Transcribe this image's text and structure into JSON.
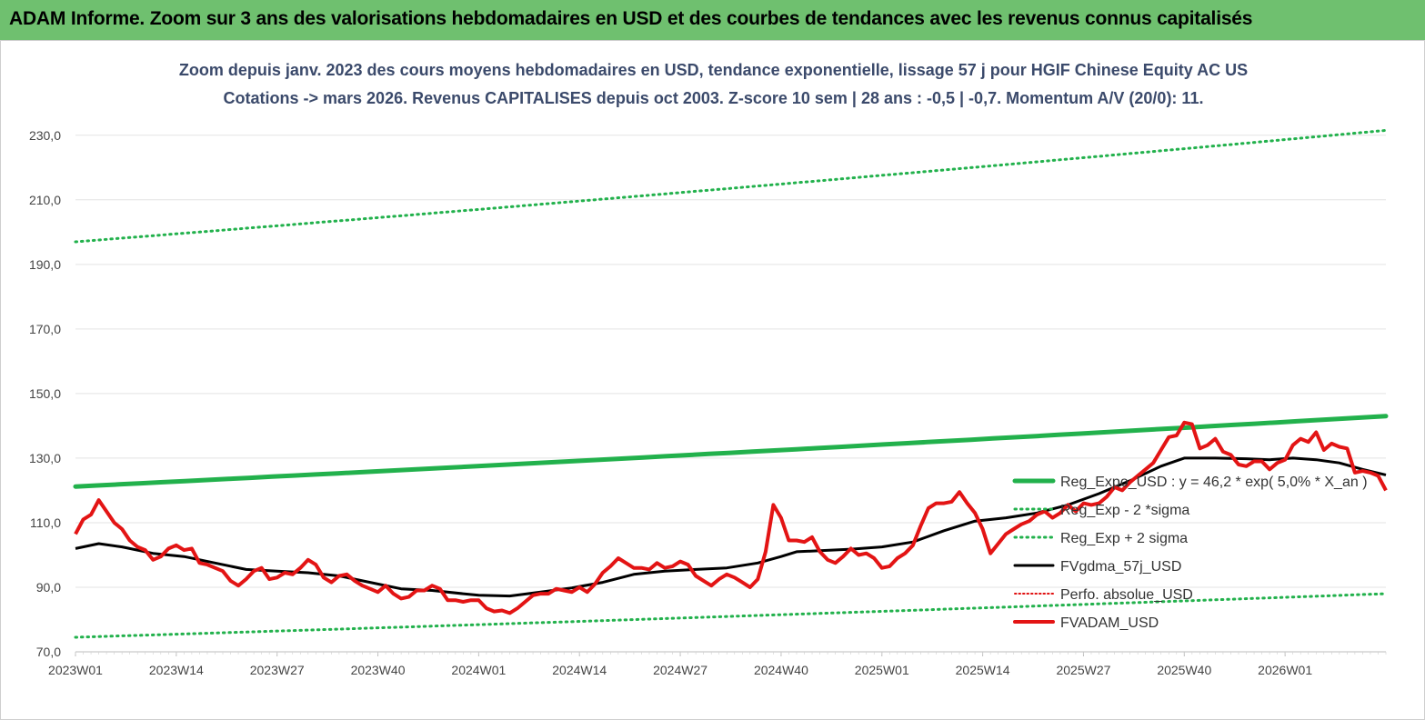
{
  "banner": {
    "title": "ADAM Informe. Zoom sur 3 ans des valorisations hebdomadaires en USD et des courbes de tendances avec les revenus connus capitalisés"
  },
  "colors": {
    "banner_bg": "#6fc06f",
    "reg_exp": "#22b14c",
    "sigma": "#22b14c",
    "gdma": "#000000",
    "perfo": "#e01010",
    "fvadam": "#e31414",
    "subtitle": "#3b4a6b"
  },
  "chart_data": {
    "type": "line",
    "title": "Zoom depuis janv. 2023 des cours moyens hebdomadaires en USD, tendance exponentielle, lissage 57 j pour HGIF Chinese Equity AC US",
    "subtitle": "Cotations -> mars 2026. Revenus CAPITALISES depuis oct 2003. Z-score 10 sem | 28 ans : -0,5 | -0,7. Momentum A/V (20/0): 11.",
    "ylim": [
      70,
      235
    ],
    "x_range": [
      0,
      169
    ],
    "yticks": [
      "70,0",
      "90,0",
      "110,0",
      "130,0",
      "150,0",
      "170,0",
      "190,0",
      "210,0",
      "230,0"
    ],
    "ytick_values": [
      70,
      90,
      110,
      130,
      150,
      170,
      190,
      210,
      230
    ],
    "xticks": [
      "2023W01",
      "2023W14",
      "2023W27",
      "2023W40",
      "2024W01",
      "2024W14",
      "2024W27",
      "2024W40",
      "2025W01",
      "2025W14",
      "2025W27",
      "2025W40",
      "2026W01"
    ],
    "xtick_values": [
      0,
      13,
      26,
      39,
      52,
      65,
      78,
      91,
      104,
      117,
      130,
      143,
      156
    ],
    "legend_position": "bottom-right",
    "series": [
      {
        "name": "Reg_Expo_USD : y = 46,2 * exp( 5,0% *  X_an )",
        "style": "solid-thick",
        "color": "#22b14c",
        "start": 121.2,
        "end": 143.0
      },
      {
        "name": "Reg_Exp - 2 *sigma",
        "style": "dotted",
        "color": "#22b14c",
        "start": 74.5,
        "end": 88.0
      },
      {
        "name": "Reg_Exp + 2 sigma",
        "style": "dotted",
        "color": "#22b14c",
        "start": 197.0,
        "end": 231.5
      },
      {
        "name": "FVgdma_57j_USD",
        "style": "solid",
        "color": "#000000",
        "points": [
          [
            0,
            102
          ],
          [
            3,
            103.5
          ],
          [
            6,
            102.5
          ],
          [
            10,
            100.5
          ],
          [
            14,
            99.5
          ],
          [
            18,
            97.5
          ],
          [
            22,
            95.5
          ],
          [
            26,
            95
          ],
          [
            30,
            94.5
          ],
          [
            34,
            93.5
          ],
          [
            38,
            91.5
          ],
          [
            42,
            89.5
          ],
          [
            46,
            89
          ],
          [
            50,
            88
          ],
          [
            52,
            87.5
          ],
          [
            56,
            87.3
          ],
          [
            60,
            88.5
          ],
          [
            64,
            89.8
          ],
          [
            68,
            91.5
          ],
          [
            72,
            94
          ],
          [
            76,
            95
          ],
          [
            80,
            95.5
          ],
          [
            84,
            96
          ],
          [
            88,
            97.5
          ],
          [
            91,
            99.5
          ],
          [
            93,
            101
          ],
          [
            96,
            101.3
          ],
          [
            100,
            101.8
          ],
          [
            104,
            102.5
          ],
          [
            108,
            104
          ],
          [
            112,
            107.5
          ],
          [
            116,
            110.5
          ],
          [
            120,
            111.5
          ],
          [
            124,
            113
          ],
          [
            128,
            115.5
          ],
          [
            132,
            119
          ],
          [
            136,
            123
          ],
          [
            140,
            127.5
          ],
          [
            143,
            130
          ],
          [
            147,
            130
          ],
          [
            151,
            129.8
          ],
          [
            154,
            129.5
          ],
          [
            157,
            130
          ],
          [
            160,
            129.5
          ],
          [
            163,
            128.5
          ],
          [
            166,
            126.5
          ],
          [
            169,
            124.8
          ]
        ]
      },
      {
        "name": "Perfo. absolue_USD",
        "style": "dotted",
        "color": "#e01010"
      },
      {
        "name": "FVADAM_USD",
        "style": "solid-thick",
        "color": "#e31414",
        "points": [
          [
            0,
            106.5
          ],
          [
            1,
            111
          ],
          [
            2,
            112.5
          ],
          [
            3,
            117
          ],
          [
            4,
            113.5
          ],
          [
            5,
            110
          ],
          [
            6,
            108
          ],
          [
            7,
            104.5
          ],
          [
            8,
            102.5
          ],
          [
            9,
            101.5
          ],
          [
            10,
            98.5
          ],
          [
            11,
            99.5
          ],
          [
            12,
            102
          ],
          [
            13,
            103
          ],
          [
            14,
            101.5
          ],
          [
            15,
            102
          ],
          [
            16,
            97.5
          ],
          [
            17,
            97
          ],
          [
            18,
            96
          ],
          [
            19,
            95
          ],
          [
            20,
            92
          ],
          [
            21,
            90.5
          ],
          [
            22,
            92.5
          ],
          [
            23,
            95
          ],
          [
            24,
            96
          ],
          [
            25,
            92.5
          ],
          [
            26,
            93
          ],
          [
            27,
            94.5
          ],
          [
            28,
            94
          ],
          [
            29,
            96
          ],
          [
            30,
            98.5
          ],
          [
            31,
            97
          ],
          [
            32,
            93
          ],
          [
            33,
            91.5
          ],
          [
            34,
            93.5
          ],
          [
            35,
            94
          ],
          [
            36,
            92
          ],
          [
            37,
            90.5
          ],
          [
            38,
            89.5
          ],
          [
            39,
            88.5
          ],
          [
            40,
            90.5
          ],
          [
            41,
            88
          ],
          [
            42,
            86.5
          ],
          [
            43,
            87
          ],
          [
            44,
            89
          ],
          [
            45,
            89
          ],
          [
            46,
            90.5
          ],
          [
            47,
            89.5
          ],
          [
            48,
            86
          ],
          [
            49,
            86
          ],
          [
            50,
            85.5
          ],
          [
            51,
            86
          ],
          [
            52,
            86
          ],
          [
            53,
            83.5
          ],
          [
            54,
            82.5
          ],
          [
            55,
            82.8
          ],
          [
            56,
            82
          ],
          [
            57,
            83.5
          ],
          [
            58,
            85.5
          ],
          [
            59,
            87.5
          ],
          [
            60,
            88
          ],
          [
            61,
            88
          ],
          [
            62,
            89.5
          ],
          [
            63,
            89
          ],
          [
            64,
            88.5
          ],
          [
            65,
            90
          ],
          [
            66,
            88.5
          ],
          [
            67,
            91
          ],
          [
            68,
            94.5
          ],
          [
            69,
            96.5
          ],
          [
            70,
            99
          ],
          [
            71,
            97.5
          ],
          [
            72,
            96
          ],
          [
            73,
            96
          ],
          [
            74,
            95.5
          ],
          [
            75,
            97.5
          ],
          [
            76,
            96
          ],
          [
            77,
            96.5
          ],
          [
            78,
            98
          ],
          [
            79,
            97
          ],
          [
            80,
            93.5
          ],
          [
            81,
            92
          ],
          [
            82,
            90.5
          ],
          [
            83,
            92.5
          ],
          [
            84,
            94
          ],
          [
            85,
            93
          ],
          [
            86,
            91.5
          ],
          [
            87,
            90
          ],
          [
            88,
            92.5
          ],
          [
            89,
            101
          ],
          [
            90,
            115.5
          ],
          [
            91,
            111.5
          ],
          [
            92,
            104.5
          ],
          [
            93,
            104.5
          ],
          [
            94,
            104
          ],
          [
            95,
            105.5
          ],
          [
            96,
            101
          ],
          [
            97,
            98.5
          ],
          [
            98,
            97.5
          ],
          [
            99,
            99.5
          ],
          [
            100,
            102
          ],
          [
            101,
            100
          ],
          [
            102,
            100.5
          ],
          [
            103,
            99
          ],
          [
            104,
            96
          ],
          [
            105,
            96.5
          ],
          [
            106,
            99
          ],
          [
            107,
            100.5
          ],
          [
            108,
            103
          ],
          [
            109,
            109
          ],
          [
            110,
            114.5
          ],
          [
            111,
            116
          ],
          [
            112,
            116
          ],
          [
            113,
            116.5
          ],
          [
            114,
            119.5
          ],
          [
            115,
            116
          ],
          [
            116,
            113
          ],
          [
            117,
            108
          ],
          [
            118,
            100.5
          ],
          [
            119,
            103.5
          ],
          [
            120,
            106.5
          ],
          [
            121,
            108
          ],
          [
            122,
            109.5
          ],
          [
            123,
            110.5
          ],
          [
            124,
            112.5
          ],
          [
            125,
            113.5
          ],
          [
            126,
            111.5
          ],
          [
            127,
            113
          ],
          [
            128,
            115.5
          ],
          [
            129,
            113.5
          ],
          [
            130,
            116
          ],
          [
            131,
            115.5
          ],
          [
            132,
            116
          ],
          [
            133,
            118
          ],
          [
            134,
            121
          ],
          [
            135,
            120
          ],
          [
            136,
            122.5
          ],
          [
            137,
            124.5
          ],
          [
            138,
            126.5
          ],
          [
            139,
            128.5
          ],
          [
            140,
            132.5
          ],
          [
            141,
            136.5
          ],
          [
            142,
            137
          ],
          [
            143,
            141
          ],
          [
            144,
            140.5
          ],
          [
            145,
            133
          ],
          [
            146,
            134
          ],
          [
            147,
            136
          ],
          [
            148,
            132
          ],
          [
            149,
            131
          ],
          [
            150,
            128
          ],
          [
            151,
            127.5
          ],
          [
            152,
            129
          ],
          [
            153,
            129
          ],
          [
            154,
            126.5
          ],
          [
            155,
            128.5
          ],
          [
            156,
            129.5
          ],
          [
            157,
            134
          ],
          [
            158,
            136
          ],
          [
            159,
            135
          ],
          [
            160,
            138
          ],
          [
            161,
            132.5
          ],
          [
            162,
            134.5
          ],
          [
            163,
            133.5
          ],
          [
            164,
            133
          ],
          [
            165,
            125.5
          ],
          [
            166,
            126
          ],
          [
            167,
            125.5
          ],
          [
            168,
            124.5
          ],
          [
            169,
            120
          ]
        ]
      }
    ]
  }
}
